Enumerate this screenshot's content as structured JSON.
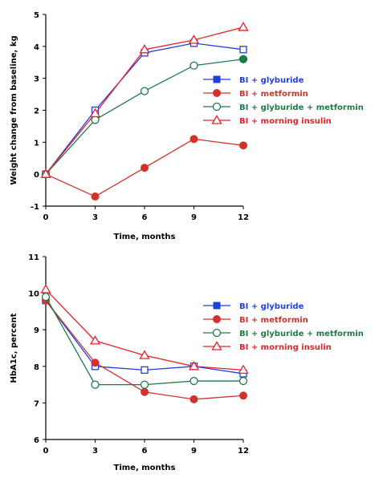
{
  "chart_data": [
    {
      "type": "line",
      "x": [
        0,
        3,
        6,
        9,
        12
      ],
      "xlabel": "Time, months",
      "ylabel": "Weight change from baseline, kg",
      "xlim": [
        0,
        12
      ],
      "ylim": [
        -1,
        5
      ],
      "xticks": [
        "0",
        "3",
        "6",
        "9",
        "12"
      ],
      "yticks": [
        "-1",
        "0",
        "1",
        "2",
        "3",
        "4",
        "5"
      ],
      "grid": false,
      "legend_position": "right",
      "series": [
        {
          "name": "BI + glyburide",
          "color": "#1f3fe0",
          "marker": "square",
          "values": [
            0,
            2.0,
            3.8,
            4.1,
            3.9
          ]
        },
        {
          "name": "BI + metformin",
          "color": "#d2322d",
          "marker": "filled-circle",
          "values": [
            0,
            -0.7,
            0.2,
            1.1,
            0.9
          ]
        },
        {
          "name": "BI + glyburide + metformin",
          "color": "#1e7a46",
          "marker": "open-circle",
          "values": [
            0,
            1.7,
            2.6,
            3.4,
            3.6
          ]
        },
        {
          "name": "BI + morning insulin",
          "color": "#e8212a",
          "marker": "open-triangle",
          "values": [
            0,
            1.9,
            3.9,
            4.2,
            4.6
          ]
        }
      ]
    },
    {
      "type": "line",
      "x": [
        0,
        3,
        6,
        9,
        12
      ],
      "xlabel": "Time, months",
      "ylabel": "HbA1c, percent",
      "xlim": [
        0,
        12
      ],
      "ylim": [
        6,
        11
      ],
      "xticks": [
        "0",
        "3",
        "6",
        "9",
        "12"
      ],
      "yticks": [
        "6",
        "7",
        "8",
        "9",
        "10",
        "11"
      ],
      "grid": false,
      "legend_position": "right",
      "series": [
        {
          "name": "BI + glyburide",
          "color": "#1f3fe0",
          "marker": "square",
          "values": [
            9.8,
            8.0,
            7.9,
            8.0,
            7.8
          ]
        },
        {
          "name": "BI + metformin",
          "color": "#d2322d",
          "marker": "filled-circle",
          "values": [
            9.8,
            8.1,
            7.3,
            7.1,
            7.2
          ]
        },
        {
          "name": "BI + glyburide + metformin",
          "color": "#1e7a46",
          "marker": "open-circle",
          "values": [
            9.9,
            7.5,
            7.5,
            7.6,
            7.6
          ]
        },
        {
          "name": "BI + morning insulin",
          "color": "#e8212a",
          "marker": "open-triangle",
          "values": [
            10.1,
            8.7,
            8.3,
            8.0,
            7.9
          ]
        }
      ]
    }
  ]
}
